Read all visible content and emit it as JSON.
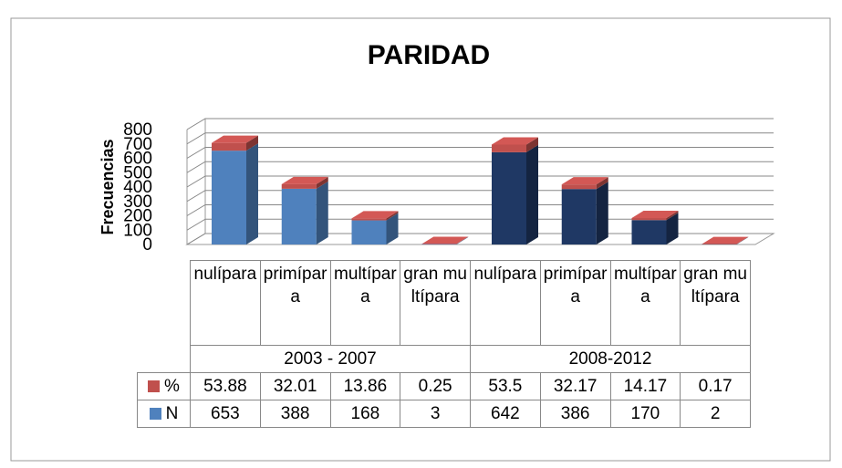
{
  "chart_data": {
    "type": "bar3d_stacked",
    "title": "PARIDAD",
    "y_label": "Frecuencias",
    "groups": [
      {
        "name": "2003 - 2007",
        "categories": [
          "nulípara",
          "primípara",
          "multípara",
          "gran multípara"
        ]
      },
      {
        "name": "2008-2012",
        "categories": [
          "nulípara",
          "primípara",
          "multípara",
          "gran multípara"
        ]
      }
    ],
    "series": [
      {
        "name": "N",
        "color": "#4f81bd",
        "colors": [
          "#4f81bd",
          "#4f81bd",
          "#4f81bd",
          "#4f81bd",
          "#1f3864",
          "#1f3864",
          "#1f3864",
          "#1f3864"
        ],
        "values": [
          653,
          388,
          168,
          3,
          642,
          386,
          170,
          2
        ]
      },
      {
        "name": "%",
        "color": "#c0504d",
        "values": [
          53.88,
          32.01,
          13.86,
          0.25,
          53.5,
          32.17,
          14.17,
          0.17
        ]
      }
    ],
    "ylim": [
      0,
      800
    ],
    "yticks": [
      0,
      100,
      200,
      300,
      400,
      500,
      600,
      700,
      800
    ],
    "grid": true,
    "data_table": true
  }
}
